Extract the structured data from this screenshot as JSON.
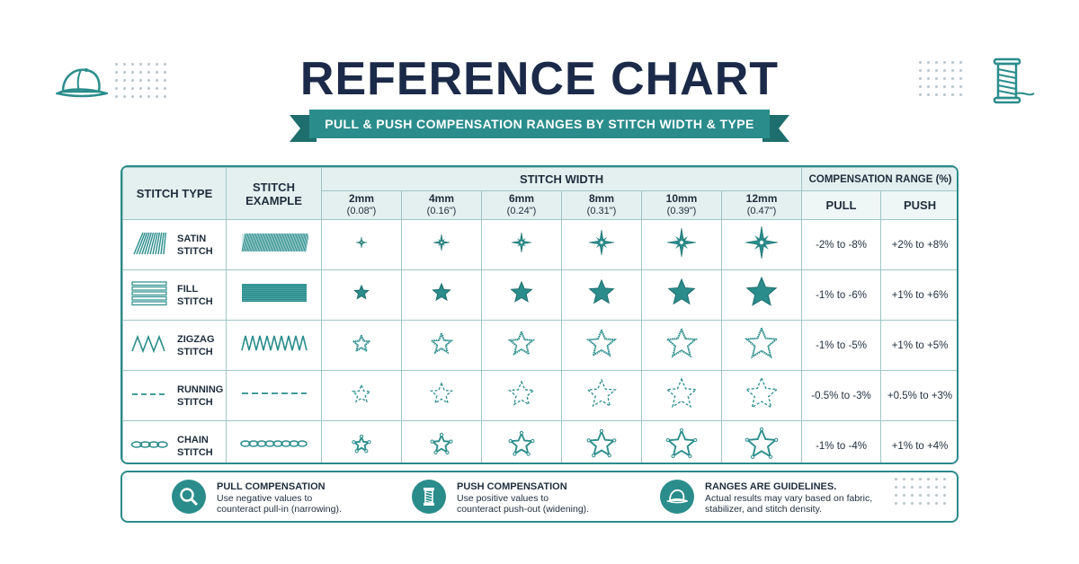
{
  "header": {
    "title": "REFERENCE CHART",
    "subtitle": "PULL & PUSH COMPENSATION RANGES BY STITCH WIDTH & TYPE"
  },
  "colors": {
    "accent": "#2a8d8c",
    "title": "#1b2a49",
    "header_bg": "#e4f0f0"
  },
  "icons": {
    "top_left": "cap-icon",
    "top_right": "thread-spool-icon"
  },
  "table": {
    "col_stitch_type": "STITCH TYPE",
    "col_stitch_example": "STITCH EXAMPLE",
    "col_stitch_width": "STITCH WIDTH",
    "col_comp_range": "COMPENSATION RANGE (%)",
    "col_pull": "PULL",
    "col_push": "PUSH",
    "widths": [
      {
        "mm": "2mm",
        "inch": "(0.08\")"
      },
      {
        "mm": "4mm",
        "inch": "(0.16\")"
      },
      {
        "mm": "6mm",
        "inch": "(0.24\")"
      },
      {
        "mm": "8mm",
        "inch": "(0.31\")"
      },
      {
        "mm": "10mm",
        "inch": "(0.39\")"
      },
      {
        "mm": "12mm",
        "inch": "(0.47\")"
      }
    ],
    "rows": [
      {
        "line1": "SATIN",
        "line2": "STITCH",
        "pull": "-2% to -8%",
        "push": "+2% to +8%",
        "icon": "satin-stitch-icon",
        "star": "compass-star"
      },
      {
        "line1": "FILL",
        "line2": "STITCH",
        "pull": "-1% to -6%",
        "push": "+1% to +6%",
        "icon": "fill-stitch-icon",
        "star": "solid-star"
      },
      {
        "line1": "ZIGZAG",
        "line2": "STITCH",
        "pull": "-1% to -5%",
        "push": "+1% to +5%",
        "icon": "zigzag-stitch-icon",
        "star": "zigzag-outline-star"
      },
      {
        "line1": "RUNNING",
        "line2": "STITCH",
        "pull": "-0.5% to -3%",
        "push": "+0.5% to +3%",
        "icon": "running-stitch-icon",
        "star": "dashed-outline-star"
      },
      {
        "line1": "CHAIN",
        "line2": "STITCH",
        "pull": "-1% to -4%",
        "push": "+1% to +4%",
        "icon": "chain-stitch-icon",
        "star": "chain-outline-star"
      }
    ]
  },
  "legend": [
    {
      "title": "PULL COMPENSATION",
      "line1": "Use negative values to",
      "line2": "counteract pull-in (narrowing).",
      "icon": "magnifier-icon"
    },
    {
      "title": "PUSH COMPENSATION",
      "line1": "Use positive values to",
      "line2": "counteract push-out (widening).",
      "icon": "thread-spool-icon"
    },
    {
      "title": "RANGES ARE GUIDELINES.",
      "line1": "Actual results may vary based on fabric,",
      "line2": "stabilizer, and stitch density.",
      "icon": "cap-icon"
    }
  ]
}
